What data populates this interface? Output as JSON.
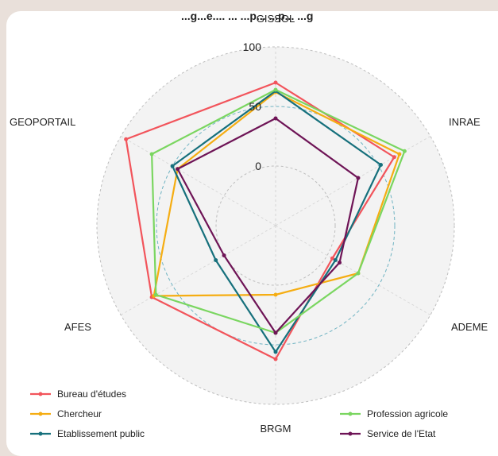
{
  "header": {
    "partial_title": "...g...e.... ... ...p... ...p... ...g"
  },
  "chart_data": {
    "type": "radar",
    "axes": [
      "GISSOL",
      "INRAE",
      "ADEME",
      "BRGM",
      "AFES",
      "GEOPORTAIL"
    ],
    "axis_labels_shown": [
      "GISSOL",
      "INRAE",
      "ADEME",
      "BRGM",
      "AFES",
      "GEOPORTAIL"
    ],
    "radial_ticks": [
      "0",
      "50",
      "100"
    ],
    "range": [
      -50,
      100
    ],
    "grid": true,
    "legend_position": "bottom",
    "series": [
      {
        "name": "Bureau d'études",
        "color": "#f2545b",
        "values": [
          70,
          65,
          5,
          62,
          70,
          95
        ]
      },
      {
        "name": "Chercheur",
        "color": "#f5ad12",
        "values": [
          62,
          70,
          30,
          8,
          68,
          45
        ]
      },
      {
        "name": "Etablissement public",
        "color": "#16707c",
        "values": [
          63,
          52,
          8,
          56,
          8,
          50
        ]
      },
      {
        "name": "Profession agricole",
        "color": "#7ad660",
        "values": [
          64,
          75,
          30,
          40,
          66,
          70
        ]
      },
      {
        "name": "Service de l'Etat",
        "color": "#6e1456",
        "values": [
          40,
          30,
          12,
          40,
          0,
          45
        ]
      }
    ]
  }
}
